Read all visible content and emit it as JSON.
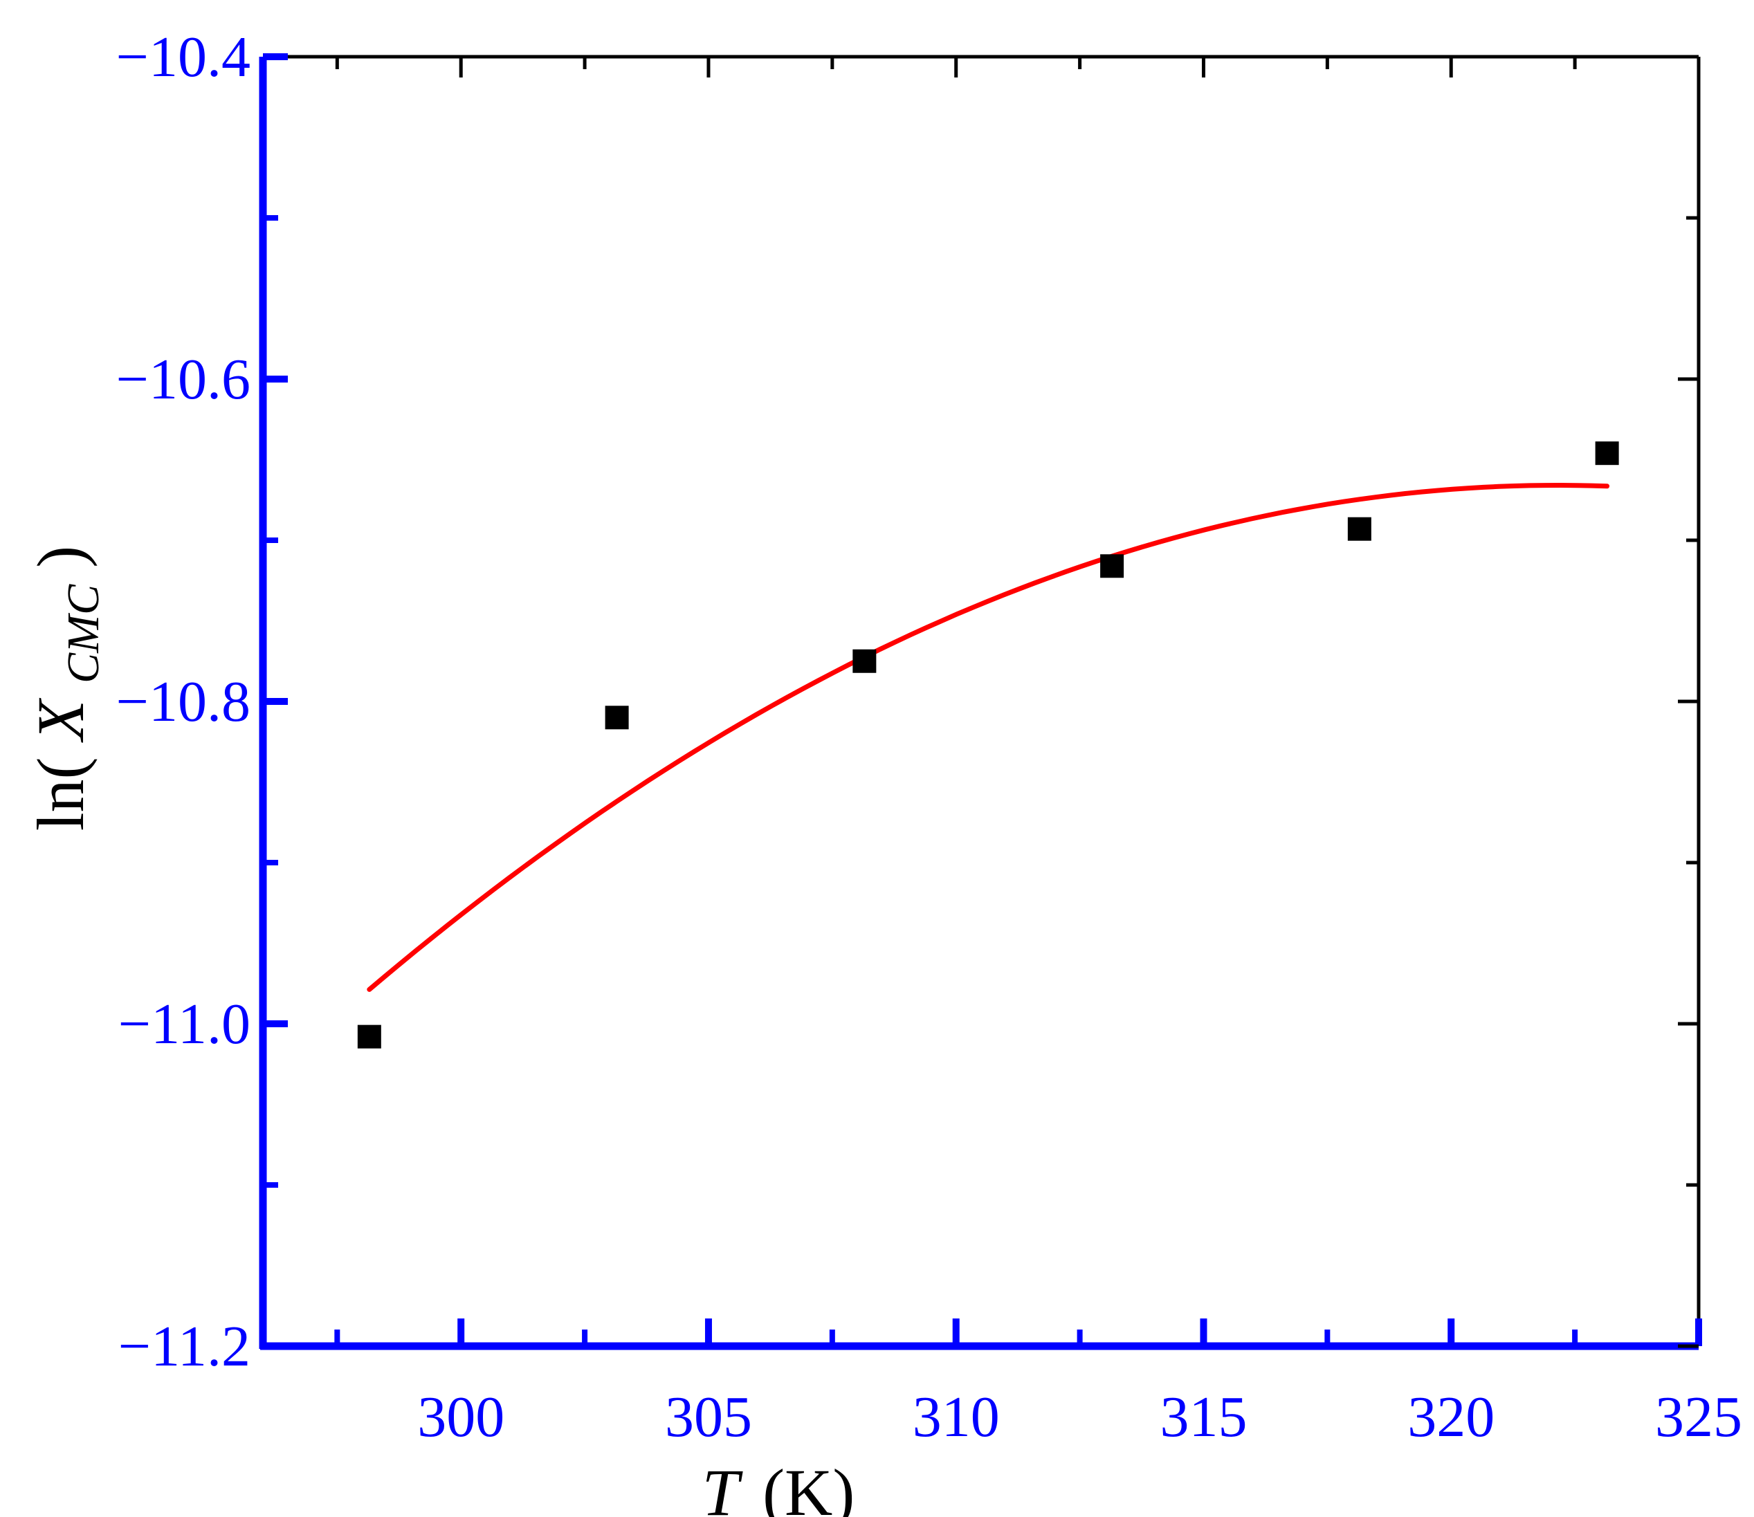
{
  "chart_data": {
    "type": "scatter",
    "title": "",
    "x_label": {
      "italic": "T",
      "unit": "(K)"
    },
    "y_label": {
      "prefix": "ln(",
      "italic": "X",
      "subscript": "CMC",
      "suffix": ")"
    },
    "xlim": [
      296,
      325
    ],
    "ylim": [
      -11.2,
      -10.4
    ],
    "x_ticks": [
      300,
      305,
      310,
      315,
      320,
      325
    ],
    "x_tick_labels": [
      "300",
      "305",
      "310",
      "315",
      "320",
      "325"
    ],
    "y_ticks": [
      -10.4,
      -10.6,
      -10.8,
      -11.0,
      -11.2
    ],
    "y_tick_labels": [
      "−10.4",
      "−10.6",
      "−10.8",
      "−11.0",
      "−11.2"
    ],
    "grid": false,
    "legend": "none",
    "series": [
      {
        "type": "scatter",
        "marker": "square",
        "color": "#000000",
        "x": [
          298.15,
          303.15,
          308.15,
          313.15,
          318.15,
          323.15
        ],
        "y": [
          -11.008,
          -10.81,
          -10.775,
          -10.716,
          -10.693,
          -10.646
        ]
      },
      {
        "type": "line",
        "color": "#ff0000",
        "x": [
          298.15,
          303.15,
          308.15,
          313.15,
          318.15,
          323.15
        ],
        "y": [
          -10.98,
          -10.86,
          -10.772,
          -10.71,
          -10.677,
          -10.665
        ]
      }
    ],
    "colors": {
      "axis_left_bottom": "#0000ff",
      "axis_right_top": "#000000",
      "tick_labels": "#0000ff"
    }
  }
}
